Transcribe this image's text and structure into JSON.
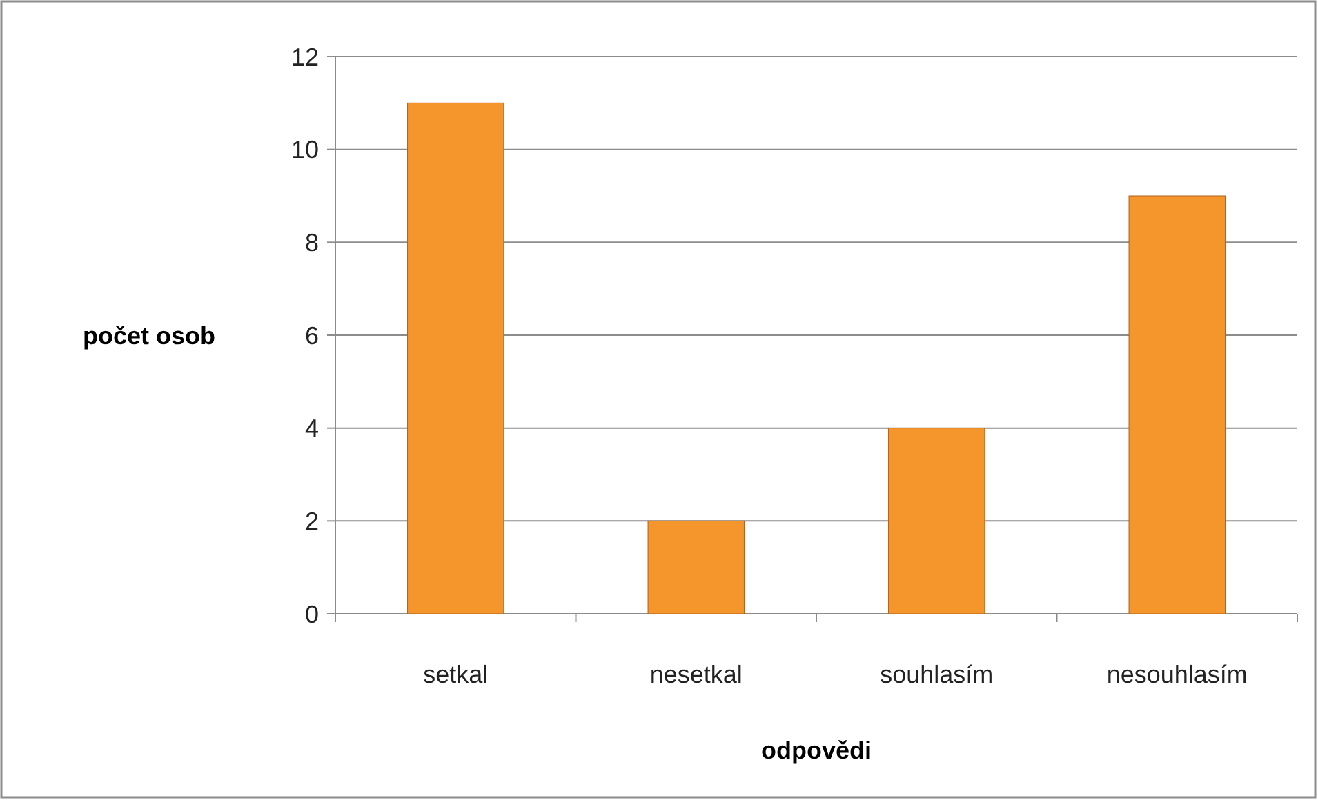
{
  "chart_data": {
    "type": "bar",
    "xlabel": "odpovědi",
    "ylabel": "počet osob",
    "categories": [
      "setkal",
      "nesetkal",
      "souhlasím",
      "nesouhlasím"
    ],
    "values": [
      11,
      2,
      4,
      9
    ],
    "color": "#f5962c",
    "ylim": [
      0,
      12
    ],
    "yticks": [
      0,
      2,
      4,
      6,
      8,
      10,
      12
    ],
    "grid": "y"
  }
}
